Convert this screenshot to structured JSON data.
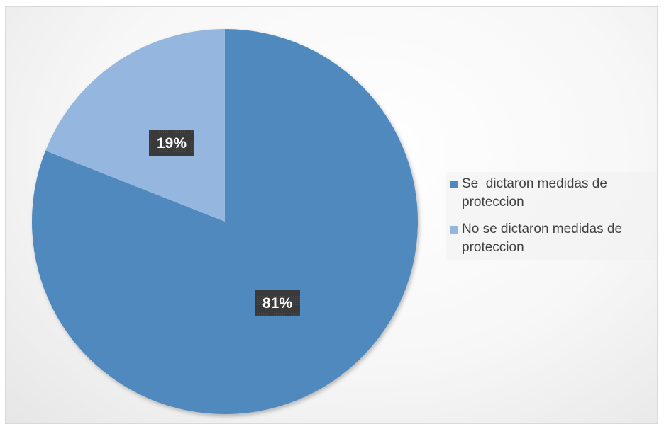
{
  "chart_data": {
    "type": "pie",
    "title": "",
    "start_angle_deg": 0,
    "direction": "clockwise",
    "slices": [
      {
        "name": "Se  dictaron medidas de\nproteccion",
        "value": 81,
        "label": "81%",
        "color": "#4f89bd"
      },
      {
        "name": "No se dictaron medidas de\nproteccion",
        "value": 19,
        "label": "19%",
        "color": "#95b7df"
      }
    ],
    "legend": {
      "placement": "right",
      "entries": [
        "Se  dictaron medidas de\nproteccion",
        "No se dictaron medidas de\nproteccion"
      ]
    },
    "data_label_style": {
      "background": "#3a3a3a",
      "text_color": "#ffffff"
    }
  }
}
